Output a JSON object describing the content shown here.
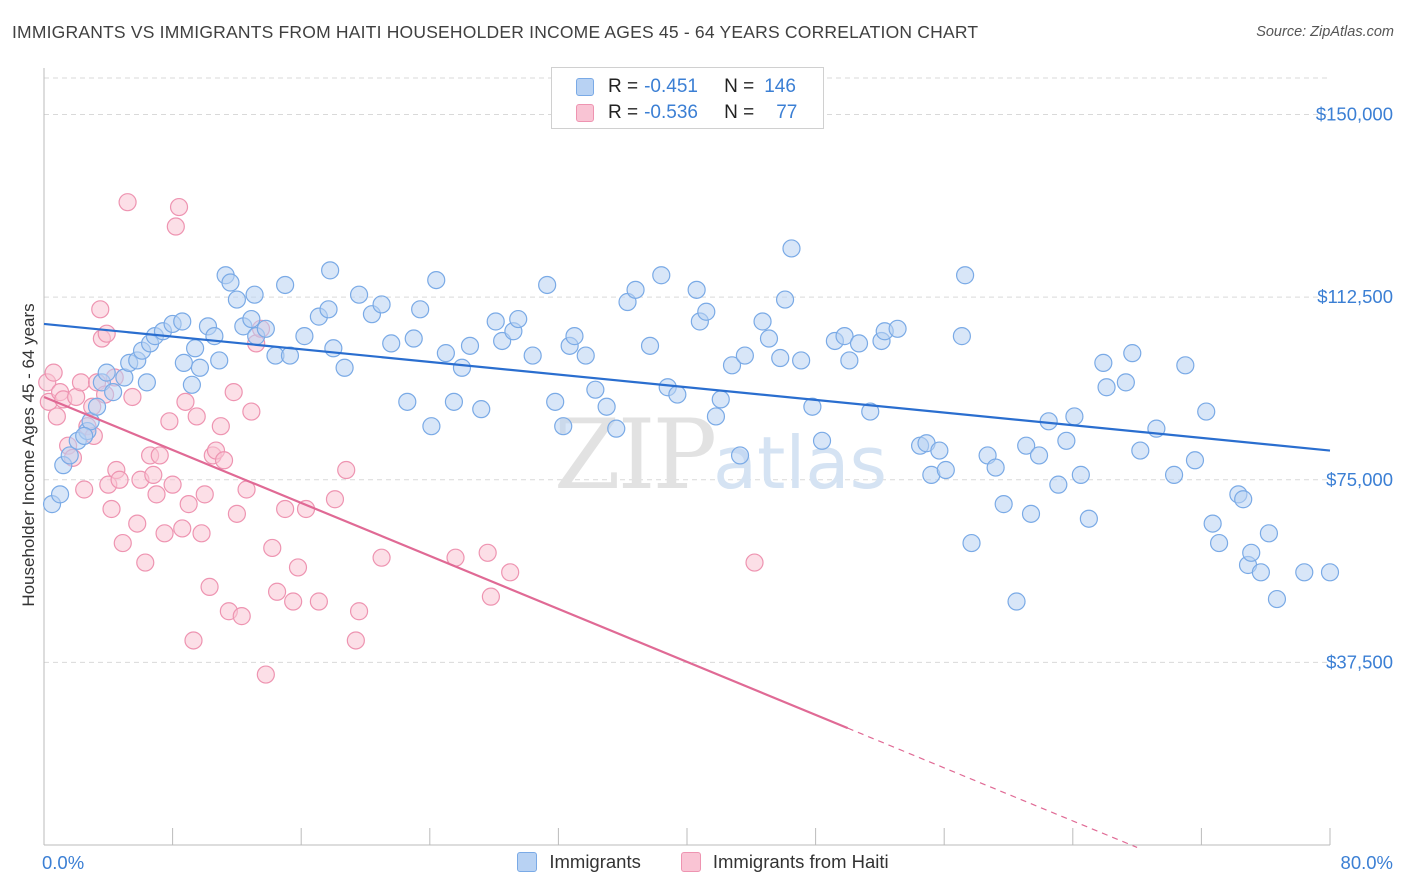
{
  "title": "IMMIGRANTS VS IMMIGRANTS FROM HAITI HOUSEHOLDER INCOME AGES 45 - 64 YEARS CORRELATION CHART",
  "source": "Source: ZipAtlas.com",
  "watermark": {
    "zip": "ZIP",
    "atlas": "atlas"
  },
  "legend": {
    "r_label": "R =",
    "n_label": "N =",
    "rows": [
      {
        "r": "-0.451",
        "n": "146"
      },
      {
        "r": "-0.536",
        "n": "77"
      }
    ]
  },
  "colors": {
    "blue_fill": "#b8d2f3",
    "blue_stroke": "#7aaae6",
    "blue_line": "#2a6ecf",
    "pink_fill": "#f9c4d4",
    "pink_stroke": "#ee94b1",
    "pink_line": "#e06a95",
    "tick_text": "#3b7fd4",
    "grid": "#d9d9d9"
  },
  "chart_data": {
    "type": "scatter",
    "title": "IMMIGRANTS VS IMMIGRANTS FROM HAITI HOUSEHOLDER INCOME AGES 45 - 64 YEARS CORRELATION CHART",
    "xlabel": "",
    "ylabel": "Householder Income Ages 45 - 64 years",
    "xlim": [
      0,
      80
    ],
    "ylim": [
      0,
      157500
    ],
    "x_tick_labels": [
      "0.0%",
      "80.0%"
    ],
    "y_ticks": [
      37500,
      75000,
      112500,
      150000
    ],
    "y_tick_labels": [
      "$37,500",
      "$75,000",
      "$112,500",
      "$150,000"
    ],
    "grid": true,
    "legend_position": "top-center",
    "series": [
      {
        "name": "Immigrants",
        "r": -0.451,
        "n": 146,
        "trend": {
          "x0": 0,
          "y0": 107000,
          "x1": 80,
          "y1": 81000
        },
        "points": [
          [
            0.5,
            70000
          ],
          [
            1,
            72000
          ],
          [
            1.2,
            78000
          ],
          [
            1.6,
            80000
          ],
          [
            2.1,
            83000
          ],
          [
            2.7,
            85000
          ],
          [
            2.9,
            87000
          ],
          [
            3.3,
            90000
          ],
          [
            3.6,
            95000
          ],
          [
            3.9,
            97000
          ],
          [
            4.3,
            93000
          ],
          [
            5.0,
            96000
          ],
          [
            5.3,
            99000
          ],
          [
            5.8,
            99500
          ],
          [
            6.1,
            101500
          ],
          [
            6.6,
            103000
          ],
          [
            6.9,
            104500
          ],
          [
            7.4,
            105500
          ],
          [
            8.0,
            107000
          ],
          [
            8.6,
            107500
          ],
          [
            8.7,
            99000
          ],
          [
            9.2,
            94500
          ],
          [
            9.4,
            102000
          ],
          [
            9.7,
            98000
          ],
          [
            10.2,
            106500
          ],
          [
            10.6,
            104500
          ],
          [
            10.9,
            99500
          ],
          [
            11.3,
            117000
          ],
          [
            11.6,
            115500
          ],
          [
            12.0,
            112000
          ],
          [
            12.4,
            106500
          ],
          [
            12.9,
            108000
          ],
          [
            13.2,
            104500
          ],
          [
            13.8,
            106000
          ],
          [
            14.4,
            100500
          ],
          [
            15.0,
            115000
          ],
          [
            15.3,
            100500
          ],
          [
            16.2,
            104500
          ],
          [
            17.1,
            108500
          ],
          [
            17.7,
            110000
          ],
          [
            17.8,
            118000
          ],
          [
            18.0,
            102000
          ],
          [
            18.7,
            98000
          ],
          [
            19.6,
            113000
          ],
          [
            20.4,
            109000
          ],
          [
            21.0,
            111000
          ],
          [
            21.6,
            103000
          ],
          [
            22.6,
            91000
          ],
          [
            23.0,
            104000
          ],
          [
            23.4,
            110000
          ],
          [
            24.1,
            86000
          ],
          [
            24.4,
            116000
          ],
          [
            25.0,
            101000
          ],
          [
            25.5,
            91000
          ],
          [
            26.0,
            98000
          ],
          [
            26.5,
            102500
          ],
          [
            27.2,
            89500
          ],
          [
            28.1,
            107500
          ],
          [
            28.5,
            103500
          ],
          [
            29.2,
            105500
          ],
          [
            29.5,
            108000
          ],
          [
            30.4,
            100500
          ],
          [
            31.3,
            115000
          ],
          [
            31.8,
            91000
          ],
          [
            32.3,
            86000
          ],
          [
            32.7,
            102500
          ],
          [
            33.0,
            104500
          ],
          [
            33.7,
            100500
          ],
          [
            34.3,
            93500
          ],
          [
            35.0,
            90000
          ],
          [
            35.6,
            85500
          ],
          [
            36.3,
            111500
          ],
          [
            36.8,
            114000
          ],
          [
            37.7,
            102500
          ],
          [
            38.4,
            117000
          ],
          [
            38.8,
            94000
          ],
          [
            39.4,
            92500
          ],
          [
            40.6,
            114000
          ],
          [
            40.8,
            107500
          ],
          [
            41.2,
            109500
          ],
          [
            41.8,
            88000
          ],
          [
            42.1,
            91500
          ],
          [
            42.8,
            98500
          ],
          [
            43.3,
            80000
          ],
          [
            43.6,
            100500
          ],
          [
            44.7,
            107500
          ],
          [
            45.1,
            104000
          ],
          [
            45.8,
            100000
          ],
          [
            46.1,
            112000
          ],
          [
            46.5,
            122500
          ],
          [
            47.1,
            99500
          ],
          [
            47.8,
            90000
          ],
          [
            48.4,
            83000
          ],
          [
            49.2,
            103500
          ],
          [
            49.8,
            104500
          ],
          [
            50.1,
            99500
          ],
          [
            50.7,
            103000
          ],
          [
            51.4,
            89000
          ],
          [
            52.1,
            103500
          ],
          [
            52.3,
            105500
          ],
          [
            53.1,
            106000
          ],
          [
            54.5,
            82000
          ],
          [
            54.9,
            82500
          ],
          [
            55.2,
            76000
          ],
          [
            55.7,
            81000
          ],
          [
            56.1,
            77000
          ],
          [
            57.1,
            104500
          ],
          [
            57.3,
            117000
          ],
          [
            57.7,
            62000
          ],
          [
            58.7,
            80000
          ],
          [
            59.2,
            77500
          ],
          [
            59.7,
            70000
          ],
          [
            60.5,
            50000
          ],
          [
            61.1,
            82000
          ],
          [
            61.4,
            68000
          ],
          [
            61.9,
            80000
          ],
          [
            62.5,
            87000
          ],
          [
            63.1,
            74000
          ],
          [
            63.6,
            83000
          ],
          [
            64.1,
            88000
          ],
          [
            64.5,
            76000
          ],
          [
            65.0,
            67000
          ],
          [
            65.9,
            99000
          ],
          [
            66.1,
            94000
          ],
          [
            67.3,
            95000
          ],
          [
            67.7,
            101000
          ],
          [
            68.2,
            81000
          ],
          [
            69.2,
            85500
          ],
          [
            70.3,
            76000
          ],
          [
            71.0,
            98500
          ],
          [
            71.6,
            79000
          ],
          [
            72.3,
            89000
          ],
          [
            72.7,
            66000
          ],
          [
            73.1,
            62000
          ],
          [
            74.3,
            72000
          ],
          [
            74.6,
            71000
          ],
          [
            74.9,
            57500
          ],
          [
            75.1,
            60000
          ],
          [
            75.7,
            56000
          ],
          [
            76.2,
            64000
          ],
          [
            76.7,
            50500
          ],
          [
            78.4,
            56000
          ],
          [
            80.0,
            56000
          ],
          [
            2.5,
            84000
          ],
          [
            6.4,
            95000
          ],
          [
            13.1,
            113000
          ]
        ]
      },
      {
        "name": "Immigrants from Haiti",
        "r": -0.536,
        "n": 77,
        "trend": {
          "x0": 0,
          "y0": 92000,
          "x1": 50,
          "y1": 24000,
          "x_dash_end": 68,
          "y_dash_end": -500
        },
        "points": [
          [
            0.2,
            95000
          ],
          [
            0.3,
            91000
          ],
          [
            0.6,
            97000
          ],
          [
            0.8,
            88000
          ],
          [
            1.0,
            93000
          ],
          [
            1.2,
            91500
          ],
          [
            1.5,
            82000
          ],
          [
            1.8,
            79500
          ],
          [
            2.0,
            92000
          ],
          [
            2.3,
            95000
          ],
          [
            2.5,
            73000
          ],
          [
            2.7,
            86000
          ],
          [
            3.0,
            90000
          ],
          [
            3.1,
            84000
          ],
          [
            3.3,
            95000
          ],
          [
            3.5,
            110000
          ],
          [
            3.6,
            104000
          ],
          [
            3.8,
            92500
          ],
          [
            4.0,
            74000
          ],
          [
            4.2,
            69000
          ],
          [
            4.5,
            77000
          ],
          [
            4.7,
            75000
          ],
          [
            4.9,
            62000
          ],
          [
            5.2,
            132000
          ],
          [
            5.5,
            92000
          ],
          [
            5.8,
            66000
          ],
          [
            6.0,
            75000
          ],
          [
            6.3,
            58000
          ],
          [
            6.6,
            80000
          ],
          [
            6.8,
            76000
          ],
          [
            7.0,
            72000
          ],
          [
            7.2,
            80000
          ],
          [
            7.5,
            64000
          ],
          [
            7.8,
            87000
          ],
          [
            8.0,
            74000
          ],
          [
            8.2,
            127000
          ],
          [
            8.4,
            131000
          ],
          [
            8.6,
            65000
          ],
          [
            8.8,
            91000
          ],
          [
            9.0,
            70000
          ],
          [
            9.3,
            42000
          ],
          [
            9.5,
            88000
          ],
          [
            9.8,
            64000
          ],
          [
            10.0,
            72000
          ],
          [
            10.3,
            53000
          ],
          [
            10.5,
            80000
          ],
          [
            10.7,
            81000
          ],
          [
            11.0,
            86000
          ],
          [
            11.2,
            79000
          ],
          [
            11.5,
            48000
          ],
          [
            11.8,
            93000
          ],
          [
            12.0,
            68000
          ],
          [
            12.3,
            47000
          ],
          [
            12.6,
            73000
          ],
          [
            12.9,
            89000
          ],
          [
            13.2,
            103000
          ],
          [
            13.5,
            106000
          ],
          [
            13.8,
            35000
          ],
          [
            14.2,
            61000
          ],
          [
            14.5,
            52000
          ],
          [
            15.0,
            69000
          ],
          [
            15.5,
            50000
          ],
          [
            15.8,
            57000
          ],
          [
            16.3,
            69000
          ],
          [
            17.1,
            50000
          ],
          [
            18.1,
            71000
          ],
          [
            18.8,
            77000
          ],
          [
            19.4,
            42000
          ],
          [
            19.6,
            48000
          ],
          [
            21.0,
            59000
          ],
          [
            25.6,
            59000
          ],
          [
            27.6,
            60000
          ],
          [
            27.8,
            51000
          ],
          [
            29.0,
            56000
          ],
          [
            44.2,
            58000
          ],
          [
            3.9,
            105000
          ],
          [
            4.4,
            96000
          ]
        ]
      }
    ]
  },
  "bottom_legend": [
    {
      "label": "Immigrants"
    },
    {
      "label": "Immigrants from Haiti"
    }
  ]
}
